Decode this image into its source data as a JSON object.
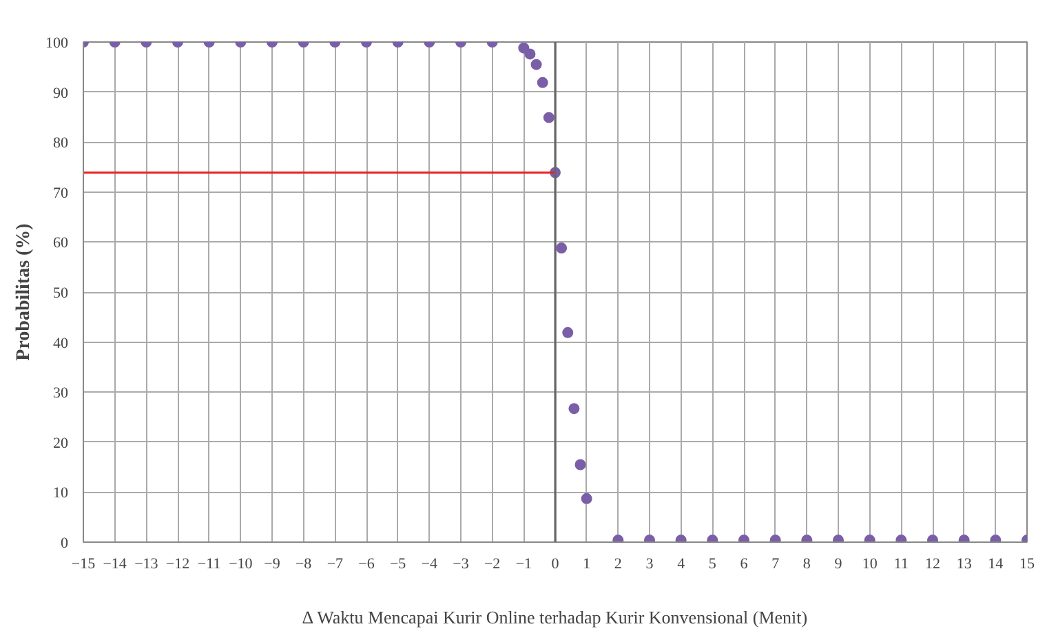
{
  "chart_data": {
    "type": "scatter",
    "xlabel": "Δ Waktu Mencapai Kurir Online terhadap Kurir Konvensional (Menit)",
    "ylabel": "Probabilitas (%)",
    "xlim": [
      -15,
      15
    ],
    "ylim": [
      0,
      100
    ],
    "xticks": [
      -15,
      -14,
      -13,
      -12,
      -11,
      -10,
      -9,
      -8,
      -7,
      -6,
      -5,
      -4,
      -3,
      -2,
      -1,
      0,
      1,
      2,
      3,
      4,
      5,
      6,
      7,
      8,
      9,
      10,
      11,
      12,
      13,
      14,
      15
    ],
    "yticks": [
      0,
      10,
      20,
      30,
      40,
      50,
      60,
      70,
      80,
      90,
      100
    ],
    "grid": true,
    "marker": "circle",
    "series": [
      {
        "color": "#7a5fa8",
        "x": [
          -15,
          -14,
          -13,
          -12,
          -11,
          -10,
          -9,
          -8,
          -7,
          -6,
          -5,
          -4,
          -3,
          -2,
          -1,
          -0.8,
          -0.6,
          -0.4,
          -0.2,
          0,
          0.2,
          0.4,
          0.6,
          0.8,
          1,
          2,
          3,
          4,
          5,
          6,
          7,
          8,
          9,
          10,
          11,
          12,
          13,
          14,
          15
        ],
        "values": [
          100,
          100,
          100,
          100,
          100,
          100,
          100,
          100,
          100,
          100,
          100,
          100,
          100,
          100,
          98.8,
          97.6,
          95.5,
          91.9,
          84.9,
          73.9,
          58.8,
          41.9,
          26.7,
          15.5,
          8.7,
          0.4,
          0.4,
          0.4,
          0.4,
          0.4,
          0.4,
          0.4,
          0.4,
          0.4,
          0.4,
          0.4,
          0.4,
          0.4,
          0.4
        ]
      },
      {
        "type": "line",
        "color": "#e8231f",
        "marker": "none",
        "x": [
          -15,
          0
        ],
        "values": [
          73.9,
          73.9
        ]
      }
    ]
  }
}
